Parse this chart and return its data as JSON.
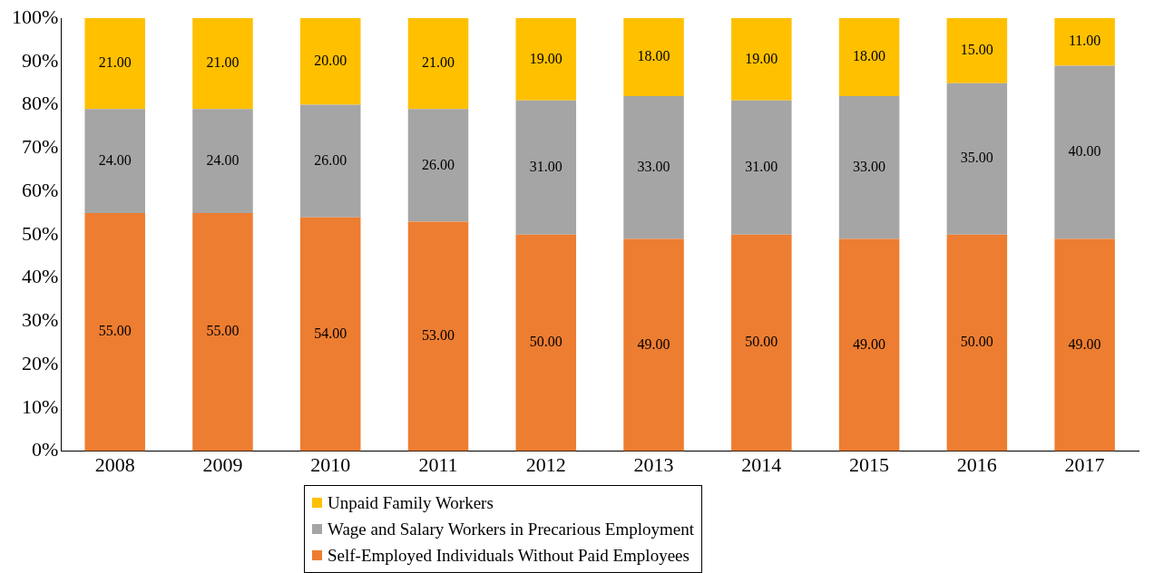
{
  "chart_data": {
    "type": "bar",
    "stacked": true,
    "legend": "bottom",
    "grid": false,
    "categories": [
      "2008",
      "2009",
      "2010",
      "2011",
      "2012",
      "2013",
      "2014",
      "2015",
      "2016",
      "2017"
    ],
    "ylim": [
      0,
      100
    ],
    "yticks": [
      {
        "value": 0,
        "label": "0%"
      },
      {
        "value": 10,
        "label": "10%"
      },
      {
        "value": 20,
        "label": "20%"
      },
      {
        "value": 30,
        "label": "30%"
      },
      {
        "value": 40,
        "label": "40%"
      },
      {
        "value": 50,
        "label": "50%"
      },
      {
        "value": 60,
        "label": "60%"
      },
      {
        "value": 70,
        "label": "70%"
      },
      {
        "value": 80,
        "label": "80%"
      },
      {
        "value": 90,
        "label": "90%"
      },
      {
        "value": 100,
        "label": "100%"
      }
    ],
    "series": [
      {
        "name": "Self-Employed Individuals Without Paid Employees",
        "color": "#ed7d31",
        "values": [
          55,
          55,
          54,
          53,
          50,
          49,
          50,
          49,
          50,
          49
        ],
        "value_labels": [
          "55.00",
          "55.00",
          "54.00",
          "53.00",
          "50.00",
          "49.00",
          "50.00",
          "49.00",
          "50.00",
          "49.00"
        ]
      },
      {
        "name": "Wage and Salary Workers in Precarious Employment",
        "color": "#a5a5a5",
        "values": [
          24,
          24,
          26,
          26,
          31,
          33,
          31,
          33,
          35,
          40
        ],
        "value_labels": [
          "24.00",
          "24.00",
          "26.00",
          "26.00",
          "31.00",
          "33.00",
          "31.00",
          "33.00",
          "35.00",
          "40.00"
        ]
      },
      {
        "name": "Unpaid Family Workers",
        "color": "#ffc000",
        "values": [
          21,
          21,
          20,
          21,
          19,
          18,
          19,
          18,
          15,
          11
        ],
        "value_labels": [
          "21.00",
          "21.00",
          "20.00",
          "21.00",
          "19.00",
          "18.00",
          "19.00",
          "18.00",
          "15.00",
          "11.00"
        ]
      }
    ]
  }
}
